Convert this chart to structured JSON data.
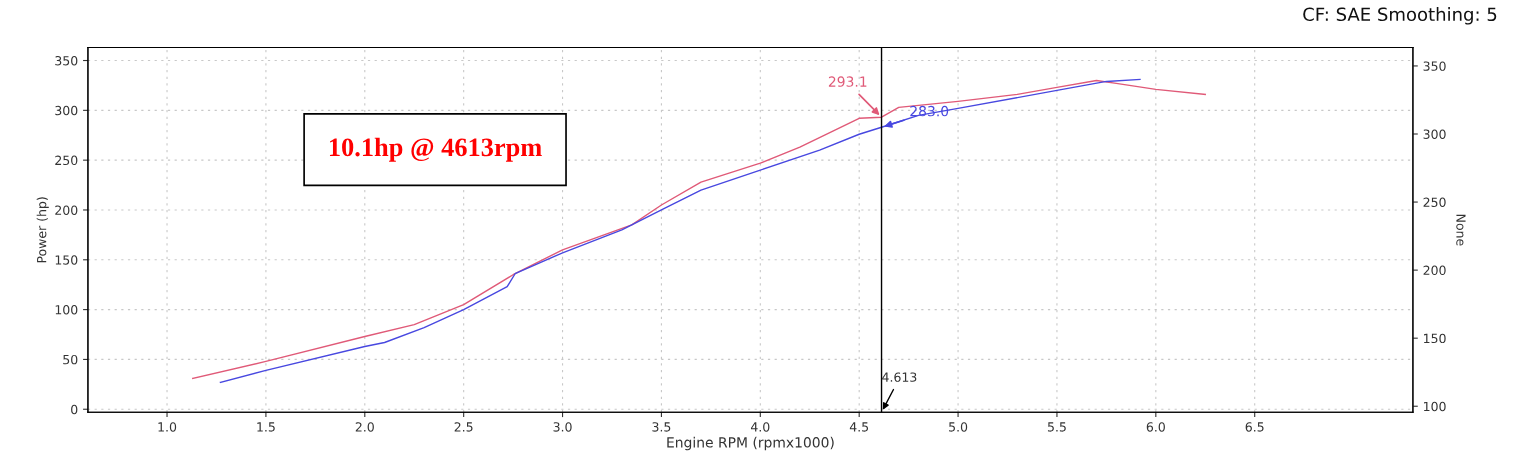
{
  "chart_data": {
    "type": "line",
    "xlabel": "Engine RPM (rpmx1000)",
    "ylabel": "Power (hp)",
    "y2label": "None",
    "xlim": [
      0.6,
      7.3
    ],
    "xticks": [
      {
        "value": 1.0,
        "label": "1.0"
      },
      1.5,
      {
        "value": 2.0,
        "label": "2.0"
      },
      2.5,
      {
        "value": 3.0,
        "label": "3.0"
      },
      3.5,
      {
        "value": 4.0,
        "label": "4.0"
      },
      4.5,
      {
        "value": 5.0,
        "label": "5.0"
      },
      5.5,
      {
        "value": 6.0,
        "label": "6.0"
      },
      6.5
    ],
    "ylim": [
      -3,
      363
    ],
    "yticks": [
      0,
      50,
      100,
      150,
      200,
      250,
      300,
      350
    ],
    "y2lim": [
      95.6,
      363.5
    ],
    "y2ticks": [
      100,
      150,
      200,
      250,
      300,
      350
    ],
    "grid": true,
    "legend": false,
    "marker": "none",
    "line_style": "solid",
    "series": [
      {
        "color": "#e05a78",
        "x": [
          1.13,
          1.5,
          2.0,
          2.25,
          2.5,
          2.75,
          3.0,
          3.35,
          3.5,
          3.7,
          4.0,
          4.2,
          4.5,
          4.613,
          4.7,
          5.0,
          5.3,
          5.5,
          5.7,
          5.8,
          6.0,
          6.25
        ],
        "values": [
          31,
          48,
          73,
          85,
          105,
          135,
          160,
          185,
          205,
          228,
          247,
          263,
          292,
          293.1,
          303,
          309,
          316,
          323,
          330,
          327,
          321,
          316
        ]
      },
      {
        "color": "#4848e0",
        "x": [
          1.27,
          1.5,
          2.0,
          2.1,
          2.3,
          2.5,
          2.72,
          2.76,
          3.0,
          3.3,
          3.5,
          3.7,
          4.0,
          4.3,
          4.5,
          4.613,
          4.8,
          5.0,
          5.5,
          5.75,
          5.92
        ],
        "values": [
          27,
          39,
          63,
          67,
          82,
          100,
          123,
          136,
          157,
          180,
          200,
          220,
          240,
          260,
          276,
          283.0,
          295,
          302,
          320,
          329,
          331
        ]
      }
    ],
    "ref_lines": [
      {
        "axis": "x",
        "value": 4.613,
        "label": "4.613",
        "color": "#000000"
      }
    ],
    "annotations": [
      "10.1hp @ 4613rpm",
      "CF: SAE Smoothing: 5",
      {
        "text": "293.1",
        "x": 4.613,
        "y": 293.1
      },
      {
        "text": "283.0",
        "x": 4.613,
        "y": 283.0
      }
    ]
  }
}
